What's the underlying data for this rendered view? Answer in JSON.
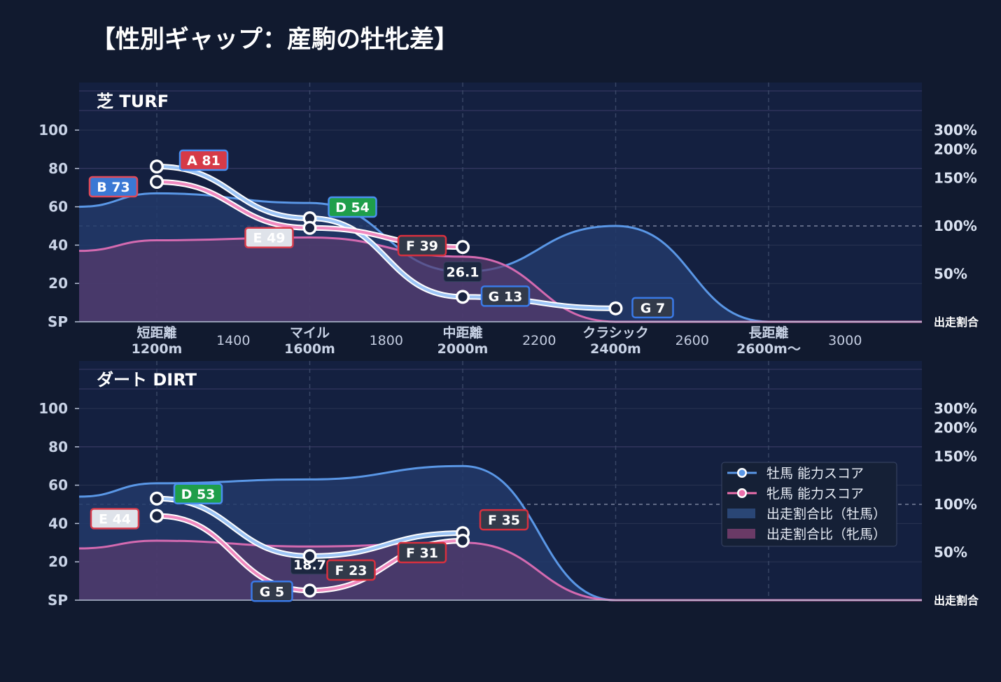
{
  "chart_title": "【性別ギャップ：産駒の牡牝差】",
  "chart_data": [
    {
      "type": "line",
      "title": "芝 TURF",
      "x_positions": [
        1200,
        1600,
        2000,
        2400,
        2600
      ],
      "x_tick_labels": [
        {
          "x": 1200,
          "lines": [
            "短距離",
            "1200m"
          ],
          "bold": true
        },
        {
          "x": 1400,
          "lines": [
            "1400"
          ],
          "bold": false
        },
        {
          "x": 1600,
          "lines": [
            "マイル",
            "1600m"
          ],
          "bold": true
        },
        {
          "x": 1800,
          "lines": [
            "1800"
          ],
          "bold": false
        },
        {
          "x": 2000,
          "lines": [
            "中距離",
            "2000m"
          ],
          "bold": true
        },
        {
          "x": 2200,
          "lines": [
            "2200"
          ],
          "bold": false
        },
        {
          "x": 2400,
          "lines": [
            "クラシック",
            "2400m"
          ],
          "bold": true
        },
        {
          "x": 2600,
          "lines": [
            "2600"
          ],
          "bold": false
        },
        {
          "x": 2800,
          "lines": [
            "長距離",
            "2600m〜"
          ],
          "bold": true
        },
        {
          "x": 3000,
          "lines": [
            "3000"
          ],
          "bold": false
        }
      ],
      "ylim": [
        0,
        100
      ],
      "y_ticks": [
        "SP",
        "20",
        "40",
        "60",
        "80",
        "100"
      ],
      "y2_ticks": [
        "出走割合",
        "50%",
        "100%",
        "150%",
        "200%",
        "300%"
      ],
      "series": [
        {
          "name": "牡馬 能力スコア",
          "color": "#5a97e6",
          "x": [
            1200,
            1600,
            2000,
            2400
          ],
          "values": [
            81,
            54,
            13,
            7
          ],
          "labels": [
            {
              "text": "A 81",
              "grade": "A"
            },
            {
              "text": "D 54",
              "grade": "D"
            },
            {
              "text": "G 13",
              "grade": "G"
            },
            {
              "text": "G 7",
              "grade": "G"
            }
          ]
        },
        {
          "name": "牝馬 能力スコア",
          "color": "#ec6fac",
          "x": [
            1200,
            1600,
            2000
          ],
          "values": [
            73,
            49,
            39
          ],
          "labels": [
            {
              "text": "B 73",
              "grade": "B"
            },
            {
              "text": "E 49",
              "grade": "E"
            },
            {
              "text": "F 39",
              "grade": "F"
            }
          ]
        }
      ],
      "ratio_series": [
        {
          "name": "出走割合比（牡馬）",
          "color": "#5a97e6",
          "x": [
            1000,
            1200,
            1600,
            2000,
            2400,
            2800,
            3200
          ],
          "values": [
            60,
            67,
            62,
            26.1,
            50,
            0,
            0
          ]
        },
        {
          "name": "出走割合比（牝馬）",
          "color": "#d46ab0",
          "x": [
            1000,
            1200,
            1600,
            2000,
            2400,
            2800,
            3200
          ],
          "values": [
            37,
            42.5,
            44,
            34,
            0,
            0,
            0
          ]
        }
      ],
      "annotations": [
        {
          "x": 2000,
          "y": 26.1,
          "text": "26.1"
        }
      ]
    },
    {
      "type": "line",
      "title": "ダート DIRT",
      "x_positions": [
        1200,
        1600,
        2000
      ],
      "ylim": [
        0,
        100
      ],
      "y_ticks": [
        "SP",
        "20",
        "40",
        "60",
        "80",
        "100"
      ],
      "y2_ticks": [
        "出走割合",
        "50%",
        "100%",
        "150%",
        "200%",
        "300%"
      ],
      "series": [
        {
          "name": "牡馬 能力スコア",
          "color": "#5a97e6",
          "x": [
            1200,
            1600,
            2000
          ],
          "values": [
            53,
            23,
            35
          ],
          "labels": [
            {
              "text": "D 53",
              "grade": "D"
            },
            {
              "text": "F 23",
              "grade": "F"
            },
            {
              "text": "F 35",
              "grade": "F"
            }
          ]
        },
        {
          "name": "牝馬 能力スコア",
          "color": "#ec6fac",
          "x": [
            1200,
            1600,
            2000
          ],
          "values": [
            44,
            5,
            31
          ],
          "labels": [
            {
              "text": "E 44",
              "grade": "E"
            },
            {
              "text": "G 5",
              "grade": "G"
            },
            {
              "text": "F 31",
              "grade": "F"
            }
          ]
        }
      ],
      "ratio_series": [
        {
          "name": "出走割合比（牡馬）",
          "color": "#5a97e6",
          "x": [
            1000,
            1200,
            1600,
            2000,
            2400,
            2800,
            3200
          ],
          "values": [
            54,
            61,
            63,
            70,
            0,
            0,
            0
          ]
        },
        {
          "name": "出走割合比（牝馬）",
          "color": "#d46ab0",
          "x": [
            1000,
            1200,
            1600,
            2000,
            2400,
            2800,
            3200
          ],
          "values": [
            27,
            31,
            28,
            30,
            0,
            0,
            0
          ]
        }
      ],
      "annotations": [
        {
          "x": 1600,
          "y": 18.7,
          "text": "18.7"
        }
      ]
    }
  ],
  "legend": {
    "placement": "right, lower panel",
    "items": [
      {
        "label": "牡馬 能力スコア",
        "kind": "line",
        "color": "#5a97e6"
      },
      {
        "label": "牝馬 能力スコア",
        "kind": "line",
        "color": "#ec6fac"
      },
      {
        "label": "出走割合比（牡馬）",
        "kind": "area",
        "color": "#2a4675"
      },
      {
        "label": "出走割合比（牝馬）",
        "kind": "area",
        "color": "#6a3a66"
      }
    ]
  },
  "grade_colors": {
    "A": "#d63a47",
    "B": "#3a78d4",
    "D": "#1f9e4a",
    "E": "#dfe3ea",
    "F": "#323a4a",
    "G": "#323a4a"
  },
  "grade_borders": {
    "A": "#4a8ef0",
    "B": "#e04a5a",
    "D": "#4a8ef0",
    "E": "#d83c4c",
    "F": "#d8303e",
    "G": "#3a7ae8"
  },
  "background_color": "#111a2f",
  "panel_color": "#142040",
  "grid_color": "#33405e"
}
